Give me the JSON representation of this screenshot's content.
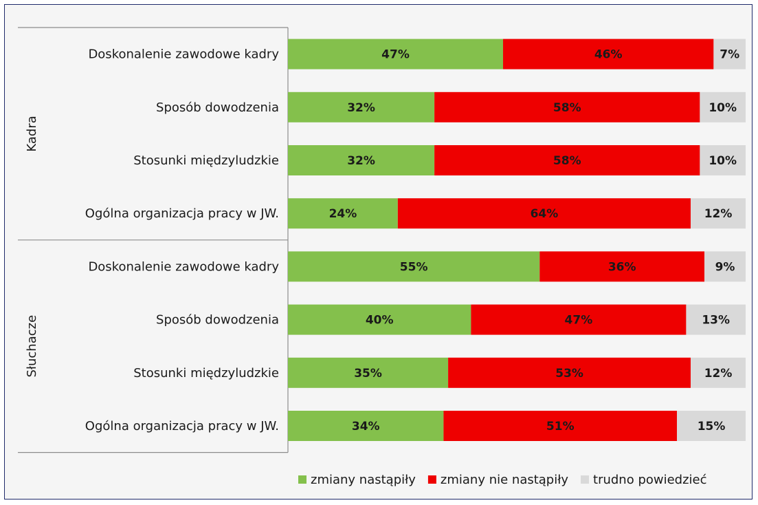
{
  "chart_data": {
    "type": "bar",
    "orientation": "horizontal",
    "stacked": true,
    "percent_stacked": true,
    "groups": [
      {
        "name": "Kadra",
        "categories": [
          "Doskonalenie zawodowe kadry",
          "Sposób dowodzenia",
          "Stosunki międzyludzkie",
          "Ogólna organizacja pracy w JW."
        ]
      },
      {
        "name": "Słuchacze",
        "categories": [
          "Doskonalenie zawodowe kadry",
          "Sposób dowodzenia",
          "Stosunki międzyludzkie",
          "Ogólna organizacja pracy w JW."
        ]
      }
    ],
    "series": [
      {
        "name": "zmiany nastąpiły",
        "color": "#84c04c",
        "values": [
          47,
          32,
          32,
          24,
          55,
          40,
          35,
          34
        ],
        "labels": [
          "47%",
          "32%",
          "32%",
          "24%",
          "55%",
          "40%",
          "35%",
          "34%"
        ]
      },
      {
        "name": "zmiany nie nastąpiły",
        "color": "#ee0000",
        "values": [
          46,
          58,
          58,
          64,
          36,
          47,
          53,
          51
        ],
        "labels": [
          "46%",
          "58%",
          "58%",
          "64%",
          "36%",
          "47%",
          "53%",
          "51%"
        ]
      },
      {
        "name": "trudno powiedzieć",
        "color": "#d9d9d9",
        "values": [
          7,
          10,
          10,
          12,
          9,
          13,
          12,
          15
        ],
        "labels": [
          "7%",
          "10%",
          "10%",
          "12%",
          "9%",
          "13%",
          "12%",
          "15%"
        ]
      }
    ],
    "legend_position": "bottom-right",
    "xlim": [
      0,
      100
    ],
    "grid": false
  }
}
